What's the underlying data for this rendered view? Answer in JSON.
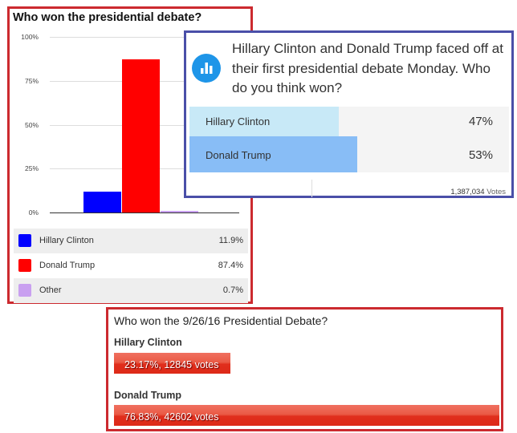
{
  "chart_data": [
    {
      "type": "bar",
      "title": "Who won the presidential debate?",
      "categories": [
        "Hillary Clinton",
        "Donald Trump",
        "Other"
      ],
      "values": [
        11.9,
        87.4,
        0.7
      ],
      "value_labels": [
        "11.9%",
        "87.4%",
        "0.7%"
      ],
      "colors": [
        "#0000ff",
        "#ff0000",
        "#c9a0f0"
      ],
      "ylim": [
        0,
        100
      ],
      "yticks": [
        "100%",
        "75%",
        "50%",
        "25%",
        "0%"
      ],
      "ytick_values": [
        100,
        75,
        50,
        25,
        0
      ],
      "grid": true,
      "legend": "bottom"
    },
    {
      "type": "bar",
      "question": "Hillary Clinton and Donald Trump faced off at their first presidential debate Monday. Who do you think won?",
      "categories": [
        "Hillary Clinton",
        "Donald Trump"
      ],
      "values": [
        47,
        53
      ],
      "value_labels": [
        "47%",
        "53%"
      ],
      "colors": [
        "#c8e9f7",
        "#88bdf6"
      ],
      "votes_count": "1,387,034",
      "votes_label": "Votes"
    },
    {
      "type": "bar",
      "title": "Who won the 9/26/16 Presidential Debate?",
      "categories": [
        "Hillary Clinton",
        "Donald Trump"
      ],
      "values": [
        23.17,
        76.83
      ],
      "votes": [
        12845,
        42602
      ],
      "value_labels": [
        "23.17%, 12845 votes",
        "76.83%, 42602 votes"
      ]
    }
  ]
}
